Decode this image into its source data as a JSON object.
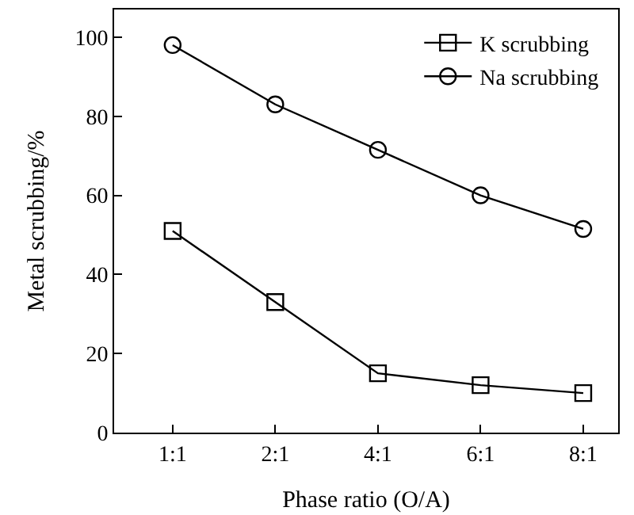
{
  "chart_data": {
    "type": "line",
    "xlabel": "Phase ratio (O/A)",
    "ylabel": "Metal scrubbing/%",
    "categories": [
      "1:1",
      "2:1",
      "4:1",
      "6:1",
      "8:1"
    ],
    "series": [
      {
        "name": "K scrubbing",
        "color": "#000000",
        "marker": "square",
        "values": [
          51,
          33,
          15,
          12,
          10
        ]
      },
      {
        "name": "Na scrubbing",
        "color": "#000000",
        "marker": "circle",
        "values": [
          98,
          83,
          71.5,
          60,
          51.5
        ]
      }
    ],
    "ylim": [
      0,
      107
    ],
    "yticks": [
      0,
      20,
      40,
      60,
      80,
      100
    ],
    "grid": false,
    "legend": "top right",
    "line_style": "solid"
  }
}
